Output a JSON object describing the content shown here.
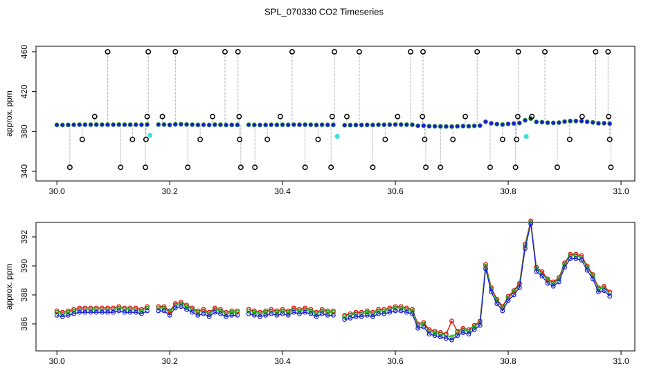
{
  "chart_data": [
    {
      "type": "scatter",
      "title": "SPL_070330  CO2 Timeseries",
      "ylabel": "approx. ppm",
      "xlim": [
        29.963,
        31.0245
      ],
      "ylim": [
        330.3,
        465.5
      ],
      "xticks": [
        {
          "value": 30,
          "label": "30.0"
        },
        30.2,
        30.4,
        30.6,
        30.8,
        {
          "value": 31,
          "label": "31.0"
        }
      ],
      "yticks": [
        340,
        380,
        420,
        460
      ],
      "series": [
        {
          "color": "#1a1adb",
          "x": [
            30,
            30.01,
            30.02,
            30.03,
            30.04,
            30.05,
            30.06,
            30.07,
            30.08,
            30.09,
            30.1,
            30.11,
            30.12,
            30.13,
            30.14,
            30.15,
            30.16,
            30.17,
            30.18,
            30.19,
            30.2,
            30.21,
            30.22,
            30.23,
            30.24,
            30.25,
            30.26,
            30.27,
            30.28,
            30.29,
            30.3,
            30.31,
            30.32,
            30.33,
            30.34,
            30.35,
            30.36,
            30.37,
            30.38,
            30.39,
            30.4,
            30.41,
            30.42,
            30.43,
            30.44,
            30.45,
            30.46,
            30.47,
            30.48,
            30.49,
            30.5,
            30.51,
            30.52,
            30.53,
            30.54,
            30.55,
            30.56,
            30.57,
            30.58,
            30.59,
            30.6,
            30.61,
            30.62,
            30.63,
            30.64,
            30.65,
            30.66,
            30.67,
            30.68,
            30.69,
            30.7,
            30.71,
            30.72,
            30.73,
            30.74,
            30.75,
            30.76,
            30.77,
            30.78,
            30.79,
            30.8,
            30.81,
            30.82,
            30.83,
            30.84,
            30.85,
            30.86,
            30.87,
            30.88,
            30.89,
            30.9,
            30.91,
            30.92,
            30.93,
            30.94,
            30.95,
            30.96,
            30.97,
            30.98
          ],
          "values": [
            386.6,
            386.5,
            386.6,
            386.7,
            386.8,
            386.8,
            386.8,
            386.8,
            386.8,
            386.8,
            386.8,
            386.9,
            386.8,
            386.8,
            386.8,
            386.7,
            386.9,
            null,
            386.9,
            386.9,
            386.6,
            387.1,
            387.2,
            387.0,
            386.8,
            386.6,
            386.7,
            386.5,
            386.8,
            386.7,
            386.5,
            386.6,
            386.6,
            null,
            386.7,
            386.6,
            386.5,
            386.6,
            386.7,
            386.6,
            386.7,
            386.6,
            386.8,
            386.7,
            386.8,
            386.7,
            386.5,
            386.7,
            386.6,
            386.6,
            null,
            386.3,
            386.4,
            386.5,
            386.5,
            386.6,
            386.5,
            386.7,
            386.7,
            386.8,
            386.9,
            386.9,
            386.8,
            386.7,
            385.7,
            385.8,
            385.3,
            385.2,
            385.1,
            385.0,
            384.9,
            385.2,
            385.4,
            385.3,
            385.6,
            385.9,
            389.8,
            388.2,
            387.4,
            386.9,
            387.6,
            388.0,
            388.5,
            391.2,
            392.9,
            389.6,
            389.3,
            388.8,
            388.6,
            388.9,
            389.9,
            390.5,
            390.5,
            390.4,
            389.7,
            389.1,
            388.2,
            388.3,
            387.9
          ]
        },
        {
          "color": "#000000",
          "x": [
            30.09,
            30.162,
            30.21,
            30.298,
            30.321,
            30.417,
            30.492,
            30.536,
            30.627,
            30.649,
            30.745,
            30.818,
            30.865,
            30.955,
            30.977,
            30.023,
            30.113,
            30.157,
            30.232,
            30.326,
            30.351,
            30.44,
            30.486,
            30.56,
            30.654,
            30.68,
            30.768,
            30.813,
            30.887,
            30.982,
            30.045,
            30.134,
            30.158,
            30.254,
            30.324,
            30.373,
            30.463,
            30.582,
            30.652,
            30.702,
            30.79,
            30.815,
            30.909,
            30.98,
            30.067,
            30.16,
            30.187,
            30.276,
            30.323,
            30.396,
            30.488,
            30.514,
            30.604,
            30.648,
            30.724,
            30.817,
            30.842,
            30.931,
            30.978
          ],
          "values": [
            460,
            460,
            460,
            460,
            460,
            460,
            460,
            460,
            460,
            460,
            460,
            460,
            460,
            460,
            460,
            344,
            344,
            344,
            344,
            344,
            344,
            344,
            344,
            344,
            344,
            344,
            344,
            344,
            344,
            344,
            372,
            372,
            372,
            372,
            372,
            372,
            372,
            372,
            372,
            372,
            372,
            372,
            372,
            372,
            395,
            395,
            395,
            395,
            395,
            395,
            395,
            395,
            395,
            395,
            395,
            395,
            395,
            395,
            395
          ]
        },
        {
          "color": "#40e0e0",
          "x": [
            30.165,
            30.497,
            30.832
          ],
          "values": [
            376,
            375,
            375
          ]
        }
      ]
    },
    {
      "type": "line",
      "ylabel": "approx. ppm",
      "xlim": [
        29.963,
        31.0245
      ],
      "ylim": [
        384.14,
        393.0
      ],
      "xticks": [
        {
          "value": 30,
          "label": "30.0"
        },
        30.2,
        30.4,
        30.6,
        30.8,
        {
          "value": 31,
          "label": "31.0"
        }
      ],
      "yticks": [
        386,
        388,
        390,
        392
      ],
      "x": [
        30,
        30.01,
        30.02,
        30.03,
        30.04,
        30.05,
        30.06,
        30.07,
        30.08,
        30.09,
        30.1,
        30.11,
        30.12,
        30.13,
        30.14,
        30.15,
        30.16,
        30.17,
        30.18,
        30.19,
        30.2,
        30.21,
        30.22,
        30.23,
        30.24,
        30.25,
        30.26,
        30.27,
        30.28,
        30.29,
        30.3,
        30.31,
        30.32,
        30.33,
        30.34,
        30.35,
        30.36,
        30.37,
        30.38,
        30.39,
        30.4,
        30.41,
        30.42,
        30.43,
        30.44,
        30.45,
        30.46,
        30.47,
        30.48,
        30.49,
        30.5,
        30.51,
        30.52,
        30.53,
        30.54,
        30.55,
        30.56,
        30.57,
        30.58,
        30.59,
        30.6,
        30.61,
        30.62,
        30.63,
        30.64,
        30.65,
        30.66,
        30.67,
        30.68,
        30.69,
        30.7,
        30.71,
        30.72,
        30.73,
        30.74,
        30.75,
        30.76,
        30.77,
        30.78,
        30.79,
        30.8,
        30.81,
        30.82,
        30.83,
        30.84,
        30.85,
        30.86,
        30.87,
        30.88,
        30.89,
        30.9,
        30.91,
        30.92,
        30.93,
        30.94,
        30.95,
        30.96,
        30.97,
        30.98
      ],
      "series": [
        {
          "color": "#e00000",
          "values": [
            386.9,
            386.8,
            386.9,
            387.0,
            387.1,
            387.1,
            387.1,
            387.1,
            387.1,
            387.1,
            387.1,
            387.2,
            387.1,
            387.1,
            387.1,
            387.0,
            387.2,
            null,
            387.2,
            387.2,
            386.9,
            387.4,
            387.5,
            387.3,
            387.1,
            386.9,
            387.0,
            386.8,
            387.1,
            387.0,
            386.8,
            386.9,
            386.9,
            null,
            387.0,
            386.9,
            386.8,
            386.9,
            387.0,
            386.9,
            387.0,
            386.9,
            387.1,
            387.0,
            387.1,
            387.0,
            386.8,
            387.0,
            386.9,
            386.9,
            null,
            386.6,
            386.7,
            386.8,
            386.8,
            386.9,
            386.8,
            387.0,
            387.0,
            387.1,
            387.2,
            387.2,
            387.1,
            387.0,
            386.0,
            386.1,
            385.6,
            385.5,
            385.4,
            385.3,
            386.2,
            385.5,
            385.7,
            385.6,
            385.9,
            386.2,
            390.1,
            388.5,
            387.7,
            387.2,
            387.9,
            388.3,
            388.8,
            391.5,
            393.1,
            389.9,
            389.6,
            389.1,
            388.9,
            389.2,
            390.2,
            390.8,
            390.8,
            390.7,
            390.0,
            389.4,
            388.5,
            388.6,
            388.2
          ]
        },
        {
          "color": "#20b020",
          "values": [
            386.8,
            386.7,
            386.8,
            386.9,
            387.0,
            387.0,
            387.0,
            387.0,
            387.0,
            387.0,
            387.0,
            387.1,
            387.0,
            387.0,
            387.0,
            386.9,
            387.1,
            null,
            387.1,
            387.1,
            386.8,
            387.3,
            387.4,
            387.2,
            387.0,
            386.8,
            386.9,
            386.7,
            387.0,
            386.9,
            386.7,
            386.8,
            386.8,
            null,
            386.9,
            386.8,
            386.7,
            386.8,
            386.9,
            386.8,
            386.9,
            386.8,
            387.0,
            386.9,
            387.0,
            386.9,
            386.7,
            386.9,
            386.8,
            386.8,
            null,
            386.5,
            386.6,
            386.7,
            386.7,
            386.8,
            386.7,
            386.9,
            386.9,
            387.0,
            387.1,
            387.1,
            387.0,
            386.9,
            385.9,
            386.0,
            385.5,
            385.4,
            385.3,
            385.2,
            385.1,
            385.4,
            385.6,
            385.5,
            385.8,
            386.1,
            390.0,
            388.4,
            387.6,
            387.1,
            387.8,
            388.2,
            388.7,
            391.4,
            393.0,
            389.8,
            389.5,
            389.0,
            388.8,
            389.1,
            390.1,
            390.7,
            390.7,
            390.6,
            389.9,
            389.3,
            388.4,
            388.5,
            388.1
          ]
        },
        {
          "color": "#1a1adb",
          "values": [
            386.6,
            386.5,
            386.6,
            386.7,
            386.8,
            386.8,
            386.8,
            386.8,
            386.8,
            386.8,
            386.8,
            386.9,
            386.8,
            386.8,
            386.8,
            386.7,
            386.9,
            null,
            386.9,
            386.9,
            386.6,
            387.1,
            387.2,
            387.0,
            386.8,
            386.6,
            386.7,
            386.5,
            386.8,
            386.7,
            386.5,
            386.6,
            386.6,
            null,
            386.7,
            386.6,
            386.5,
            386.6,
            386.7,
            386.6,
            386.7,
            386.6,
            386.8,
            386.7,
            386.8,
            386.7,
            386.5,
            386.7,
            386.6,
            386.6,
            null,
            386.3,
            386.4,
            386.5,
            386.5,
            386.6,
            386.5,
            386.7,
            386.7,
            386.8,
            386.9,
            386.9,
            386.8,
            386.7,
            385.7,
            385.8,
            385.3,
            385.2,
            385.1,
            385.0,
            384.9,
            385.2,
            385.4,
            385.3,
            385.6,
            385.9,
            389.8,
            388.2,
            387.4,
            386.9,
            387.6,
            388.0,
            388.5,
            391.2,
            392.9,
            389.6,
            389.3,
            388.8,
            388.6,
            388.9,
            389.9,
            390.5,
            390.5,
            390.4,
            389.7,
            389.1,
            388.2,
            388.3,
            387.9
          ]
        }
      ]
    }
  ]
}
